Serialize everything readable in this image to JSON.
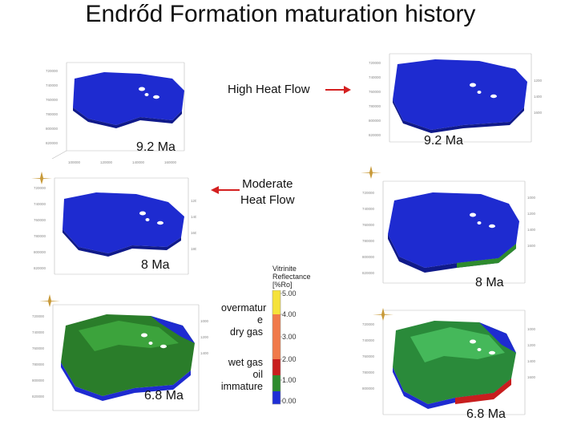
{
  "title": "Endrőd Formation maturation history",
  "labels": {
    "high_heat_flow": "High Heat Flow",
    "moderate_heat_flow_line1": "Moderate",
    "moderate_heat_flow_line2": "Heat Flow"
  },
  "panels": [
    {
      "age": "9.2 Ma",
      "column": "left",
      "heat_flow": "moderate"
    },
    {
      "age": "9.2 Ma",
      "column": "right",
      "heat_flow": "high"
    },
    {
      "age": "8 Ma",
      "column": "left",
      "heat_flow": "moderate"
    },
    {
      "age": "8 Ma",
      "column": "right",
      "heat_flow": "high"
    },
    {
      "age": "6.8 Ma",
      "column": "left",
      "heat_flow": "moderate"
    },
    {
      "age": "6.8 Ma",
      "column": "right",
      "heat_flow": "high"
    }
  ],
  "legend": {
    "title_line1": "Vitrinite",
    "title_line2": "Reflectance",
    "title_line3": "[%Ro]",
    "ticks": [
      "5.00",
      "4.00",
      "3.00",
      "2.00",
      "1.00",
      "0.00"
    ],
    "zones": {
      "overmature_line1": "overmatur",
      "overmature_line2": "e",
      "dry_gas": "dry gas",
      "wet_gas": "wet gas",
      "oil": "oil",
      "immature": "immature"
    }
  },
  "colors": {
    "immature": "#1f2fd6",
    "oil": "#2e8b2e",
    "wet_gas": "#c81e1e",
    "dry_gas": "#f07a4a",
    "overmature": "#f5e23a",
    "arrow": "#d42020"
  }
}
